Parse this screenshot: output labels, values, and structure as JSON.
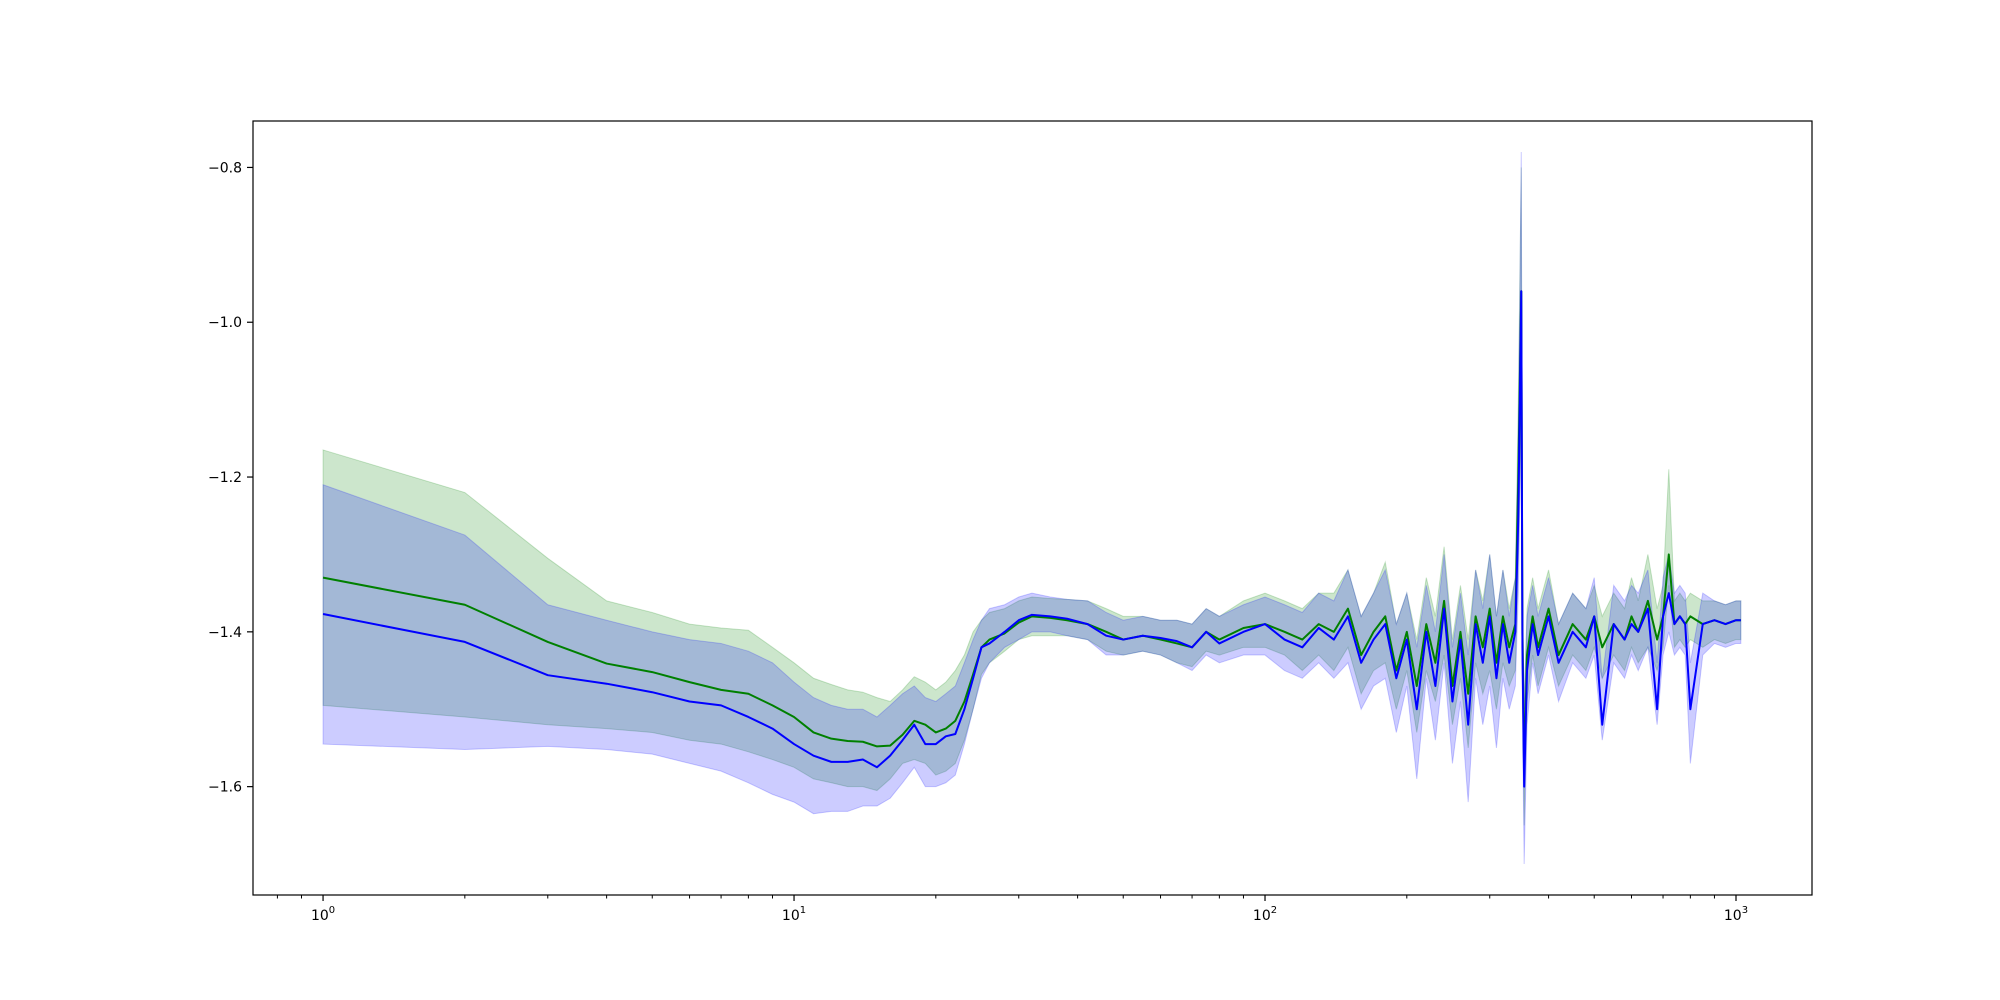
{
  "chart_data": {
    "type": "line",
    "title": "",
    "xlabel": "",
    "ylabel": "",
    "x_scale": "log",
    "xlim": [
      0.71,
      1450
    ],
    "ylim": [
      -1.74,
      -0.74
    ],
    "grid": false,
    "x_ticks": [
      {
        "value": 1,
        "base": "10",
        "exp": "0"
      },
      {
        "value": 10,
        "base": "10",
        "exp": "1"
      },
      {
        "value": 100,
        "base": "10",
        "exp": "2"
      },
      {
        "value": 1000,
        "base": "10",
        "exp": "3"
      }
    ],
    "y_ticks": [
      {
        "value": -0.8,
        "label": "−0.8"
      },
      {
        "value": -1.0,
        "label": "−1.0"
      },
      {
        "value": -1.2,
        "label": "−1.2"
      },
      {
        "value": -1.4,
        "label": "−1.4"
      },
      {
        "value": -1.6,
        "label": "−1.6"
      }
    ],
    "series": [
      {
        "color": "#008000",
        "band_color": "#008000",
        "band_opacity": 0.2,
        "x": [
          1,
          2,
          3,
          4,
          5,
          6,
          7,
          8,
          9,
          10,
          11,
          12,
          13,
          14,
          15,
          16,
          17,
          18,
          19,
          20,
          21,
          22,
          23,
          24,
          25,
          26,
          28,
          30,
          32,
          35,
          38,
          42,
          46,
          50,
          55,
          60,
          65,
          70,
          75,
          80,
          90,
          100,
          110,
          120,
          130,
          140,
          150,
          160,
          170,
          180,
          190,
          200,
          210,
          220,
          230,
          240,
          250,
          260,
          270,
          280,
          290,
          300,
          310,
          320,
          330,
          340,
          345,
          350,
          352,
          355,
          360,
          370,
          380,
          400,
          420,
          450,
          480,
          500,
          520,
          550,
          580,
          600,
          620,
          650,
          680,
          700,
          720,
          740,
          760,
          780,
          800,
          850,
          900,
          950,
          1000,
          1024
        ],
        "y": [
          -1.33,
          -1.365,
          -1.413,
          -1.441,
          -1.452,
          -1.465,
          -1.475,
          -1.48,
          -1.495,
          -1.51,
          -1.53,
          -1.538,
          -1.541,
          -1.542,
          -1.548,
          -1.547,
          -1.533,
          -1.515,
          -1.52,
          -1.53,
          -1.525,
          -1.515,
          -1.49,
          -1.455,
          -1.42,
          -1.41,
          -1.402,
          -1.388,
          -1.38,
          -1.382,
          -1.385,
          -1.39,
          -1.4,
          -1.41,
          -1.405,
          -1.41,
          -1.415,
          -1.42,
          -1.4,
          -1.41,
          -1.395,
          -1.39,
          -1.4,
          -1.41,
          -1.39,
          -1.4,
          -1.37,
          -1.43,
          -1.4,
          -1.38,
          -1.45,
          -1.4,
          -1.47,
          -1.39,
          -1.44,
          -1.36,
          -1.47,
          -1.4,
          -1.48,
          -1.38,
          -1.42,
          -1.37,
          -1.44,
          -1.38,
          -1.42,
          -1.39,
          -1.2,
          -0.96,
          -1.4,
          -1.58,
          -1.43,
          -1.38,
          -1.42,
          -1.37,
          -1.43,
          -1.39,
          -1.41,
          -1.38,
          -1.42,
          -1.39,
          -1.41,
          -1.38,
          -1.4,
          -1.36,
          -1.41,
          -1.38,
          -1.3,
          -1.39,
          -1.38,
          -1.39,
          -1.38,
          -1.39,
          -1.385,
          -1.39,
          -1.385,
          -1.385
        ],
        "lower": [
          -1.495,
          -1.51,
          -1.52,
          -1.525,
          -1.53,
          -1.54,
          -1.545,
          -1.555,
          -1.565,
          -1.575,
          -1.59,
          -1.595,
          -1.6,
          -1.6,
          -1.605,
          -1.59,
          -1.57,
          -1.565,
          -1.57,
          -1.585,
          -1.58,
          -1.57,
          -1.54,
          -1.5,
          -1.455,
          -1.44,
          -1.425,
          -1.41,
          -1.405,
          -1.405,
          -1.405,
          -1.41,
          -1.425,
          -1.43,
          -1.425,
          -1.43,
          -1.44,
          -1.445,
          -1.425,
          -1.43,
          -1.42,
          -1.42,
          -1.43,
          -1.45,
          -1.43,
          -1.45,
          -1.42,
          -1.48,
          -1.45,
          -1.44,
          -1.5,
          -1.45,
          -1.53,
          -1.45,
          -1.49,
          -1.43,
          -1.52,
          -1.46,
          -1.55,
          -1.44,
          -1.48,
          -1.45,
          -1.5,
          -1.44,
          -1.47,
          -1.45,
          -1.3,
          -1.1,
          -1.46,
          -1.65,
          -1.49,
          -1.43,
          -1.47,
          -1.42,
          -1.47,
          -1.43,
          -1.45,
          -1.42,
          -1.46,
          -1.43,
          -1.45,
          -1.42,
          -1.44,
          -1.42,
          -1.45,
          -1.42,
          -1.34,
          -1.42,
          -1.41,
          -1.42,
          -1.41,
          -1.42,
          -1.41,
          -1.415,
          -1.41,
          -1.41
        ],
        "upper": [
          -1.165,
          -1.22,
          -1.305,
          -1.36,
          -1.375,
          -1.39,
          -1.395,
          -1.398,
          -1.42,
          -1.44,
          -1.46,
          -1.468,
          -1.475,
          -1.478,
          -1.485,
          -1.49,
          -1.475,
          -1.458,
          -1.465,
          -1.475,
          -1.465,
          -1.45,
          -1.43,
          -1.4,
          -1.385,
          -1.375,
          -1.37,
          -1.36,
          -1.355,
          -1.357,
          -1.358,
          -1.36,
          -1.37,
          -1.38,
          -1.38,
          -1.385,
          -1.385,
          -1.39,
          -1.37,
          -1.38,
          -1.36,
          -1.35,
          -1.36,
          -1.37,
          -1.35,
          -1.35,
          -1.32,
          -1.38,
          -1.35,
          -1.31,
          -1.39,
          -1.35,
          -1.41,
          -1.33,
          -1.38,
          -1.29,
          -1.41,
          -1.34,
          -1.41,
          -1.32,
          -1.36,
          -1.3,
          -1.38,
          -1.32,
          -1.37,
          -1.33,
          -1.1,
          -0.8,
          -1.34,
          -1.5,
          -1.37,
          -1.33,
          -1.37,
          -1.32,
          -1.39,
          -1.35,
          -1.37,
          -1.34,
          -1.38,
          -1.35,
          -1.37,
          -1.33,
          -1.36,
          -1.3,
          -1.37,
          -1.34,
          -1.19,
          -1.36,
          -1.35,
          -1.36,
          -1.35,
          -1.36,
          -1.36,
          -1.365,
          -1.36,
          -1.36
        ]
      },
      {
        "color": "#0000ff",
        "band_color": "#0000ff",
        "band_opacity": 0.2,
        "x": [
          1,
          2,
          3,
          4,
          5,
          6,
          7,
          8,
          9,
          10,
          11,
          12,
          13,
          14,
          15,
          16,
          17,
          18,
          19,
          20,
          21,
          22,
          23,
          24,
          25,
          26,
          28,
          30,
          32,
          35,
          38,
          42,
          46,
          50,
          55,
          60,
          65,
          70,
          75,
          80,
          90,
          100,
          110,
          120,
          130,
          140,
          150,
          160,
          170,
          180,
          190,
          200,
          210,
          220,
          230,
          240,
          250,
          260,
          270,
          280,
          290,
          300,
          310,
          320,
          330,
          340,
          345,
          350,
          352,
          355,
          360,
          370,
          380,
          400,
          420,
          450,
          480,
          500,
          520,
          550,
          580,
          600,
          620,
          650,
          680,
          700,
          720,
          740,
          760,
          780,
          800,
          850,
          900,
          950,
          1000,
          1024
        ],
        "y": [
          -1.377,
          -1.413,
          -1.456,
          -1.467,
          -1.478,
          -1.49,
          -1.495,
          -1.51,
          -1.525,
          -1.545,
          -1.56,
          -1.568,
          -1.568,
          -1.565,
          -1.575,
          -1.56,
          -1.54,
          -1.52,
          -1.545,
          -1.545,
          -1.535,
          -1.532,
          -1.5,
          -1.46,
          -1.42,
          -1.415,
          -1.4,
          -1.385,
          -1.378,
          -1.38,
          -1.383,
          -1.39,
          -1.405,
          -1.41,
          -1.405,
          -1.408,
          -1.412,
          -1.42,
          -1.4,
          -1.415,
          -1.4,
          -1.39,
          -1.41,
          -1.42,
          -1.395,
          -1.41,
          -1.38,
          -1.44,
          -1.41,
          -1.39,
          -1.46,
          -1.41,
          -1.5,
          -1.4,
          -1.47,
          -1.37,
          -1.49,
          -1.41,
          -1.52,
          -1.39,
          -1.44,
          -1.38,
          -1.46,
          -1.39,
          -1.44,
          -1.4,
          -1.25,
          -0.96,
          -1.42,
          -1.6,
          -1.45,
          -1.39,
          -1.43,
          -1.38,
          -1.44,
          -1.4,
          -1.42,
          -1.38,
          -1.52,
          -1.39,
          -1.41,
          -1.39,
          -1.4,
          -1.37,
          -1.5,
          -1.38,
          -1.35,
          -1.39,
          -1.38,
          -1.39,
          -1.5,
          -1.39,
          -1.385,
          -1.39,
          -1.385,
          -1.385
        ],
        "lower": [
          -1.545,
          -1.552,
          -1.548,
          -1.552,
          -1.558,
          -1.57,
          -1.58,
          -1.595,
          -1.61,
          -1.62,
          -1.635,
          -1.632,
          -1.632,
          -1.625,
          -1.625,
          -1.615,
          -1.595,
          -1.575,
          -1.6,
          -1.6,
          -1.595,
          -1.585,
          -1.545,
          -1.5,
          -1.46,
          -1.44,
          -1.42,
          -1.41,
          -1.4,
          -1.4,
          -1.405,
          -1.41,
          -1.43,
          -1.43,
          -1.425,
          -1.43,
          -1.44,
          -1.45,
          -1.43,
          -1.44,
          -1.43,
          -1.43,
          -1.45,
          -1.46,
          -1.44,
          -1.46,
          -1.44,
          -1.5,
          -1.47,
          -1.46,
          -1.53,
          -1.47,
          -1.59,
          -1.46,
          -1.54,
          -1.44,
          -1.57,
          -1.49,
          -1.62,
          -1.46,
          -1.52,
          -1.47,
          -1.55,
          -1.46,
          -1.5,
          -1.47,
          -1.35,
          -1.12,
          -1.5,
          -1.7,
          -1.52,
          -1.44,
          -1.48,
          -1.43,
          -1.49,
          -1.44,
          -1.46,
          -1.43,
          -1.54,
          -1.44,
          -1.46,
          -1.43,
          -1.45,
          -1.42,
          -1.52,
          -1.43,
          -1.4,
          -1.43,
          -1.42,
          -1.43,
          -1.57,
          -1.43,
          -1.415,
          -1.42,
          -1.415,
          -1.415
        ],
        "upper": [
          -1.21,
          -1.275,
          -1.365,
          -1.385,
          -1.4,
          -1.41,
          -1.415,
          -1.425,
          -1.44,
          -1.465,
          -1.485,
          -1.495,
          -1.5,
          -1.5,
          -1.51,
          -1.495,
          -1.48,
          -1.47,
          -1.485,
          -1.49,
          -1.48,
          -1.47,
          -1.44,
          -1.41,
          -1.385,
          -1.37,
          -1.365,
          -1.355,
          -1.35,
          -1.355,
          -1.358,
          -1.36,
          -1.375,
          -1.385,
          -1.38,
          -1.385,
          -1.385,
          -1.39,
          -1.37,
          -1.38,
          -1.365,
          -1.355,
          -1.365,
          -1.375,
          -1.35,
          -1.36,
          -1.32,
          -1.38,
          -1.35,
          -1.32,
          -1.39,
          -1.35,
          -1.42,
          -1.34,
          -1.4,
          -1.3,
          -1.42,
          -1.35,
          -1.43,
          -1.32,
          -1.37,
          -1.3,
          -1.38,
          -1.32,
          -1.38,
          -1.33,
          -1.16,
          -0.78,
          -1.35,
          -1.5,
          -1.38,
          -1.34,
          -1.38,
          -1.33,
          -1.39,
          -1.35,
          -1.37,
          -1.33,
          -1.46,
          -1.34,
          -1.36,
          -1.34,
          -1.35,
          -1.32,
          -1.44,
          -1.33,
          -1.3,
          -1.35,
          -1.34,
          -1.35,
          -1.44,
          -1.35,
          -1.36,
          -1.365,
          -1.36,
          -1.36
        ]
      }
    ]
  }
}
